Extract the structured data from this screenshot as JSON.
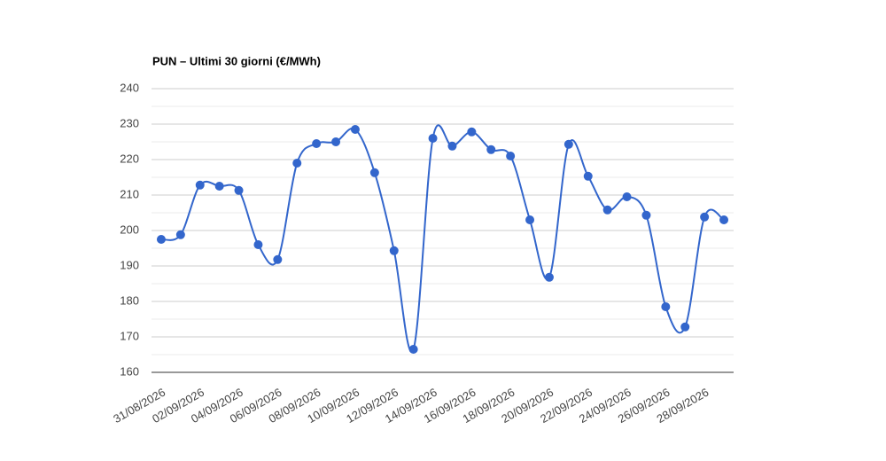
{
  "chart_data": {
    "type": "line",
    "title": "PUN – Ultimi 30 giorni (€/MWh)",
    "categories": [
      "31/08/2026",
      null,
      "02/09/2026",
      null,
      "04/09/2026",
      null,
      "06/09/2026",
      null,
      "08/09/2026",
      null,
      "10/09/2026",
      null,
      "12/09/2026",
      null,
      "14/09/2026",
      null,
      "16/09/2026",
      null,
      "18/09/2026",
      null,
      "20/09/2026",
      null,
      "22/09/2026",
      null,
      "24/09/2026",
      null,
      "26/09/2026",
      null,
      "28/09/2026",
      null
    ],
    "series": [
      {
        "name": "PUN",
        "color": "#3366cc",
        "values": [
          197.5,
          198.8,
          212.8,
          212.5,
          211.3,
          196,
          191.8,
          219,
          224.5,
          225,
          228.5,
          216.3,
          194.3,
          166.5,
          226,
          223.8,
          227.8,
          222.8,
          221,
          203,
          186.8,
          224.3,
          215.3,
          205.8,
          209.5,
          204.3,
          178.5,
          172.8,
          203.8,
          203
        ]
      }
    ],
    "ylim": [
      160,
      240
    ],
    "yticks": [
      160,
      170,
      180,
      190,
      200,
      210,
      220,
      230,
      240
    ],
    "grid": true,
    "smooth": true
  }
}
